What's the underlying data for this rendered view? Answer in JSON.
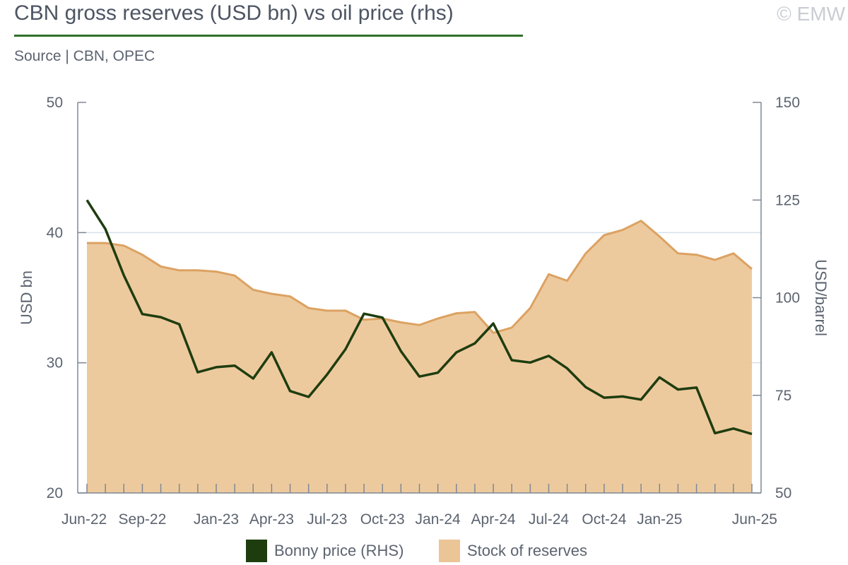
{
  "header": {
    "title": "CBN gross reserves (USD bn) vs oil price (rhs)",
    "source": "Source | CBN, OPEC",
    "copyright": "© EMW"
  },
  "colors": {
    "reserves_fill": "#ecc596",
    "reserves_line": "#dca262",
    "bonny_line": "#1e3d0f",
    "accent": "#2f6f2a",
    "grid": "#d6e1ea",
    "axis": "#7f8894"
  },
  "chart_data": {
    "type": "area",
    "x": [
      "Jun-22",
      "Jul-22",
      "Aug-22",
      "Sep-22",
      "Oct-22",
      "Nov-22",
      "Dec-22",
      "Jan-23",
      "Feb-23",
      "Mar-23",
      "Apr-23",
      "May-23",
      "Jun-23",
      "Jul-23",
      "Aug-23",
      "Sep-23",
      "Oct-23",
      "Nov-23",
      "Dec-23",
      "Jan-24",
      "Feb-24",
      "Mar-24",
      "Apr-24",
      "May-24",
      "Jun-24",
      "Jul-24",
      "Aug-24",
      "Sep-24",
      "Oct-24",
      "Nov-24",
      "Dec-24",
      "Jan-25",
      "Feb-25",
      "Mar-25",
      "Apr-25",
      "May-25",
      "Jun-25"
    ],
    "x_tick_labels": [
      "Jun-22",
      "Sep-22",
      "Jan-23",
      "Apr-23",
      "Jul-23",
      "Oct-23",
      "Jan-24",
      "Apr-24",
      "Jul-24",
      "Oct-24",
      "Jan-25",
      "Jun-25"
    ],
    "x_tick_label_points": [
      "Jun-22",
      "Sep-22",
      "Jan-23",
      "Apr-23",
      "Jul-23",
      "Oct-23",
      "Jan-24",
      "Apr-24",
      "Jul-24",
      "Oct-24",
      "Jan-25",
      "Jun-25"
    ],
    "series": [
      {
        "name": "Stock of reserves",
        "type": "area",
        "axis": "left",
        "values": [
          39.2,
          39.2,
          39.0,
          38.3,
          37.4,
          37.1,
          37.1,
          37.0,
          36.7,
          35.6,
          35.3,
          35.1,
          34.2,
          34.0,
          34.0,
          33.3,
          33.4,
          33.1,
          32.9,
          33.4,
          33.8,
          33.9,
          32.3,
          32.7,
          34.2,
          36.8,
          36.3,
          38.4,
          39.8,
          40.2,
          40.9,
          39.7,
          38.4,
          38.3,
          37.9,
          38.4,
          37.2
        ]
      },
      {
        "name": "Bonny price (RHS)",
        "type": "line",
        "axis": "right",
        "values": [
          125.0,
          117.6,
          105.7,
          95.8,
          95.0,
          93.2,
          80.9,
          82.2,
          82.6,
          79.3,
          86.0,
          76.1,
          74.6,
          80.3,
          86.8,
          95.9,
          94.9,
          86.3,
          79.8,
          80.8,
          86.0,
          88.3,
          93.4,
          84.0,
          83.4,
          85.1,
          81.9,
          77.1,
          74.4,
          74.7,
          73.9,
          79.6,
          76.5,
          77.0,
          65.3,
          66.5,
          65.1
        ]
      }
    ],
    "y_left": {
      "label": "USD bn",
      "min": 20,
      "max": 50,
      "ticks": [
        20,
        30,
        40,
        50
      ]
    },
    "y_right": {
      "label": "USD/barrel",
      "min": 50,
      "max": 150,
      "ticks": [
        50,
        75,
        100,
        125,
        150
      ]
    },
    "grid": true,
    "legend_position": "bottom",
    "legend": [
      {
        "label": "Bonny price (RHS)",
        "color": "#1e3d0f"
      },
      {
        "label": "Stock of reserves",
        "color": "#ecc596"
      }
    ]
  }
}
